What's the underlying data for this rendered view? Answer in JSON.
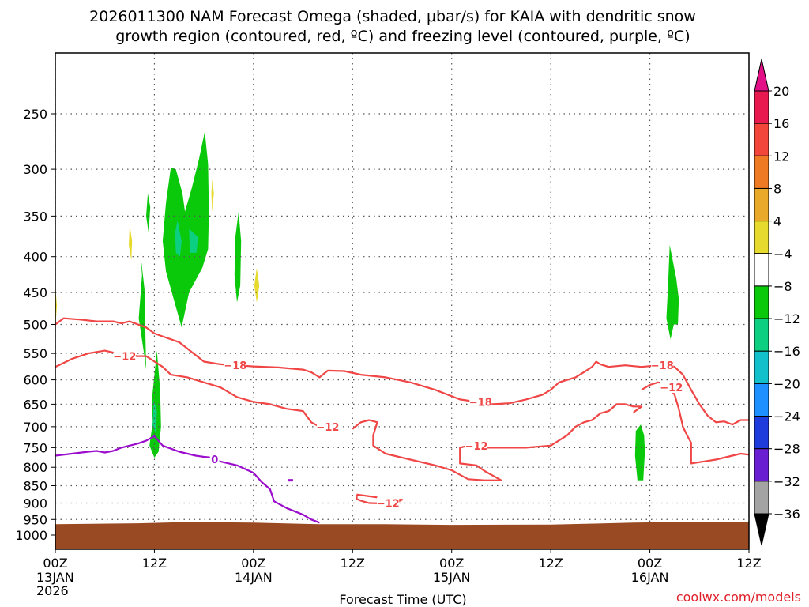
{
  "chart_data": {
    "type": "heatmap",
    "title_line1": "2026011300 NAM Forecast Omega (shaded, μbar/s) for KAIA with dendritic snow",
    "title_line2": "growth region (contoured, red, ºC) and freezing level (contoured, purple, ºC)",
    "xlabel": "Forecast Time (UTC)",
    "credit": "coolwx.com/models",
    "x_ticks": [
      {
        "h": 0,
        "label": "00Z",
        "sub1": "13JAN",
        "sub2": "2026"
      },
      {
        "h": 12,
        "label": "12Z",
        "sub1": "",
        "sub2": ""
      },
      {
        "h": 24,
        "label": "00Z",
        "sub1": "14JAN",
        "sub2": ""
      },
      {
        "h": 36,
        "label": "12Z",
        "sub1": "",
        "sub2": ""
      },
      {
        "h": 48,
        "label": "00Z",
        "sub1": "15JAN",
        "sub2": ""
      },
      {
        "h": 60,
        "label": "12Z",
        "sub1": "",
        "sub2": ""
      },
      {
        "h": 72,
        "label": "00Z",
        "sub1": "16JAN",
        "sub2": ""
      },
      {
        "h": 84,
        "label": "12Z",
        "sub1": "",
        "sub2": ""
      }
    ],
    "xlim": [
      0,
      84
    ],
    "y_ticks": [
      250,
      300,
      350,
      400,
      450,
      500,
      550,
      600,
      650,
      700,
      750,
      800,
      850,
      900,
      950,
      1000
    ],
    "ylim": [
      200,
      1035
    ],
    "y_scale": "log",
    "grid": true,
    "colorbar": {
      "labels": [
        "20",
        "16",
        "12",
        "8",
        "4",
        "−4",
        "−8",
        "−12",
        "−16",
        "−20",
        "−24",
        "−28",
        "−32",
        "−36"
      ],
      "colors": [
        "#e8194f",
        "#f2463a",
        "#ee7b24",
        "#e9a92b",
        "#e6da2e",
        "#ffffff",
        "#0ac80a",
        "#0ccf82",
        "#12c0cc",
        "#1e90ff",
        "#1e3cdc",
        "#6a1ed2",
        "#9a0acb",
        "#a3a3a3"
      ],
      "top_cap": "#e20f87",
      "bottom_cap": "#000000"
    },
    "terrain_color": "#9a4a22",
    "omega_regions": [
      {
        "color": "#0ac80a",
        "pts": [
          [
            10.3,
            395
          ],
          [
            10.5,
            425
          ],
          [
            10.1,
            490
          ],
          [
            10.7,
            545
          ],
          [
            11.0,
            580
          ],
          [
            10.9,
            505
          ],
          [
            10.8,
            445
          ]
        ]
      },
      {
        "color": "#0ac80a",
        "pts": [
          [
            12.3,
            545
          ],
          [
            12.7,
            620
          ],
          [
            12.8,
            700
          ],
          [
            12.5,
            760
          ],
          [
            12.0,
            775
          ],
          [
            11.4,
            745
          ],
          [
            11.8,
            690
          ],
          [
            11.7,
            640
          ]
        ]
      },
      {
        "color": "#0ac80a",
        "pts": [
          [
            14.0,
            298
          ],
          [
            13.4,
            335
          ],
          [
            13.0,
            380
          ],
          [
            13.4,
            420
          ],
          [
            15.3,
            505
          ],
          [
            16.2,
            450
          ],
          [
            17.8,
            415
          ],
          [
            18.5,
            390
          ],
          [
            18.6,
            345
          ],
          [
            18.5,
            295
          ],
          [
            18.1,
            265
          ],
          [
            17.4,
            290
          ],
          [
            16.5,
            320
          ],
          [
            15.7,
            345
          ],
          [
            15.4,
            325
          ],
          [
            14.6,
            300
          ]
        ]
      },
      {
        "color": "#0ccf82",
        "pts": [
          [
            14.8,
            355
          ],
          [
            15.3,
            380
          ],
          [
            15.1,
            400
          ],
          [
            14.6,
            395
          ],
          [
            14.5,
            370
          ]
        ]
      },
      {
        "color": "#0ccf82",
        "pts": [
          [
            16.2,
            365
          ],
          [
            17.3,
            375
          ],
          [
            17.1,
            395
          ],
          [
            16.3,
            395
          ]
        ]
      },
      {
        "color": "#0ccf82",
        "pts": [
          [
            11.9,
            640
          ],
          [
            12.3,
            665
          ],
          [
            12.2,
            715
          ],
          [
            11.8,
            700
          ]
        ]
      },
      {
        "color": "#0ac80a",
        "pts": [
          [
            11.2,
            325
          ],
          [
            11.5,
            340
          ],
          [
            11.3,
            370
          ],
          [
            11.0,
            350
          ]
        ]
      },
      {
        "color": "#0ac80a",
        "pts": [
          [
            22.2,
            345
          ],
          [
            22.5,
            380
          ],
          [
            22.4,
            440
          ],
          [
            22.0,
            465
          ],
          [
            21.7,
            425
          ],
          [
            21.8,
            375
          ]
        ]
      },
      {
        "color": "#e6da2e",
        "pts": [
          [
            19.0,
            310
          ],
          [
            19.2,
            325
          ],
          [
            19.0,
            345
          ],
          [
            18.9,
            325
          ]
        ]
      },
      {
        "color": "#e6da2e",
        "pts": [
          [
            9.0,
            360
          ],
          [
            9.3,
            380
          ],
          [
            9.2,
            405
          ],
          [
            8.9,
            385
          ]
        ]
      },
      {
        "color": "#e6da2e",
        "pts": [
          [
            24.4,
            415
          ],
          [
            24.7,
            440
          ],
          [
            24.4,
            465
          ],
          [
            24.1,
            440
          ]
        ]
      },
      {
        "color": "#e6da2e",
        "pts": [
          [
            0.0,
            440
          ],
          [
            0.2,
            470
          ],
          [
            0.0,
            505
          ]
        ]
      },
      {
        "color": "#0ac80a",
        "pts": [
          [
            70.9,
            695
          ],
          [
            71.3,
            720
          ],
          [
            71.4,
            760
          ],
          [
            71.2,
            835
          ],
          [
            70.5,
            835
          ],
          [
            70.2,
            770
          ],
          [
            70.3,
            710
          ]
        ]
      },
      {
        "color": "#0ac80a",
        "pts": [
          [
            74.4,
            385
          ],
          [
            75.2,
            430
          ],
          [
            75.5,
            460
          ],
          [
            75.4,
            500
          ],
          [
            74.9,
            500
          ],
          [
            74.5,
            525
          ],
          [
            74.0,
            490
          ],
          [
            74.2,
            440
          ]
        ]
      }
    ],
    "contours": [
      {
        "name": "−12",
        "color": "#f04646",
        "pts": [
          [
            0,
            575
          ],
          [
            2,
            560
          ],
          [
            4,
            550
          ],
          [
            6,
            545
          ],
          [
            8,
            552
          ],
          [
            10,
            555
          ],
          [
            11,
            555
          ],
          [
            13,
            575
          ],
          [
            14,
            590
          ],
          [
            16,
            595
          ],
          [
            18,
            605
          ],
          [
            20,
            615
          ],
          [
            22,
            635
          ],
          [
            24,
            645
          ],
          [
            26,
            650
          ],
          [
            28,
            660
          ],
          [
            30,
            665
          ],
          [
            31,
            690
          ],
          [
            32,
            700
          ]
        ]
      },
      {
        "name": "−12",
        "color": "#f04646",
        "pts": [
          [
            36,
            705
          ],
          [
            37,
            690
          ],
          [
            38,
            685
          ],
          [
            39,
            690
          ],
          [
            38.5,
            720
          ],
          [
            38.5,
            745
          ],
          [
            40,
            765
          ],
          [
            43,
            780
          ],
          [
            46,
            795
          ],
          [
            48,
            808
          ],
          [
            49,
            820
          ],
          [
            50,
            832
          ],
          [
            52,
            835
          ],
          [
            54,
            835
          ],
          [
            52,
            810
          ],
          [
            51,
            795
          ],
          [
            49,
            790
          ],
          [
            49,
            750
          ],
          [
            50,
            745
          ],
          [
            52,
            750
          ],
          [
            57,
            750
          ],
          [
            60,
            745
          ],
          [
            62,
            720
          ],
          [
            63,
            700
          ],
          [
            64,
            690
          ],
          [
            65,
            685
          ],
          [
            66,
            670
          ],
          [
            67,
            665
          ],
          [
            68,
            650
          ],
          [
            69,
            650
          ],
          [
            70,
            655
          ],
          [
            71,
            655
          ],
          [
            70,
            668
          ]
        ]
      },
      {
        "name": "−12",
        "color": "#f04646",
        "pts": [
          [
            71,
            620
          ],
          [
            72,
            610
          ],
          [
            73,
            605
          ],
          [
            74,
            608
          ],
          [
            75,
            630
          ],
          [
            75.5,
            660
          ],
          [
            76,
            700
          ],
          [
            76.5,
            720
          ],
          [
            77,
            738
          ],
          [
            77,
            790
          ],
          [
            80,
            780
          ],
          [
            83,
            765
          ],
          [
            85,
            770
          ],
          [
            85.5,
            800
          ],
          [
            86,
            812
          ]
        ]
      },
      {
        "name": "−12",
        "color": "#f04646",
        "pts": [
          [
            36.5,
            875
          ],
          [
            38,
            880
          ],
          [
            41,
            890
          ],
          [
            42,
            890
          ],
          [
            41,
            902
          ],
          [
            38,
            900
          ],
          [
            37,
            893
          ],
          [
            36.5,
            888
          ],
          [
            36.5,
            875
          ]
        ]
      },
      {
        "name": "−18",
        "color": "#f04646",
        "pts": [
          [
            0,
            500
          ],
          [
            1,
            490
          ],
          [
            3,
            492
          ],
          [
            5,
            495
          ],
          [
            7,
            495
          ],
          [
            8,
            498
          ],
          [
            9,
            495
          ],
          [
            11,
            505
          ],
          [
            12,
            515
          ],
          [
            13,
            520
          ],
          [
            15,
            530
          ],
          [
            18,
            565
          ],
          [
            20,
            570
          ],
          [
            22,
            572
          ],
          [
            24,
            574
          ],
          [
            27,
            576
          ],
          [
            30,
            580
          ],
          [
            31,
            585
          ],
          [
            32,
            595
          ],
          [
            33,
            582
          ],
          [
            35,
            583
          ],
          [
            37,
            590
          ],
          [
            40,
            595
          ],
          [
            43,
            605
          ],
          [
            46,
            620
          ],
          [
            49,
            640
          ],
          [
            51,
            645
          ],
          [
            53,
            650
          ],
          [
            55,
            648
          ],
          [
            57,
            640
          ],
          [
            59,
            630
          ],
          [
            60,
            620
          ],
          [
            61,
            605
          ],
          [
            63,
            595
          ],
          [
            64,
            585
          ],
          [
            65,
            575
          ],
          [
            65.5,
            565
          ],
          [
            66,
            570
          ],
          [
            67,
            575
          ],
          [
            69,
            572
          ],
          [
            71,
            575
          ],
          [
            73,
            572
          ],
          [
            74,
            570
          ],
          [
            75,
            575
          ],
          [
            76,
            590
          ],
          [
            77,
            620
          ],
          [
            78,
            650
          ],
          [
            79,
            675
          ],
          [
            80,
            690
          ],
          [
            81,
            688
          ],
          [
            82,
            695
          ],
          [
            83,
            685
          ],
          [
            85,
            685
          ],
          [
            86,
            690
          ]
        ]
      },
      {
        "name": "0",
        "color": "#9b0ccd",
        "pts": [
          [
            0,
            770
          ],
          [
            2,
            765
          ],
          [
            4,
            760
          ],
          [
            5,
            758
          ],
          [
            6,
            762
          ],
          [
            7,
            758
          ],
          [
            8,
            750
          ],
          [
            10,
            740
          ],
          [
            11,
            733
          ],
          [
            12,
            722
          ],
          [
            13,
            745
          ],
          [
            15,
            760
          ],
          [
            17,
            770
          ],
          [
            18,
            773
          ],
          [
            19,
            775
          ],
          [
            20,
            785
          ],
          [
            22,
            795
          ],
          [
            24,
            815
          ],
          [
            25,
            840
          ],
          [
            26,
            860
          ],
          [
            26.5,
            895
          ],
          [
            28,
            915
          ],
          [
            30,
            935
          ],
          [
            31,
            950
          ],
          [
            32,
            960
          ]
        ]
      }
    ],
    "contour_labels": [
      {
        "text": "−12",
        "h": 8.4,
        "p": 555
      },
      {
        "text": "−18",
        "h": 21.8,
        "p": 572
      },
      {
        "text": "−12",
        "h": 33.0,
        "p": 700
      },
      {
        "text": "−18",
        "h": 51.5,
        "p": 645
      },
      {
        "text": "−12",
        "h": 51.0,
        "p": 745
      },
      {
        "text": "−12",
        "h": 40.3,
        "p": 900
      },
      {
        "text": "−18",
        "h": 73.5,
        "p": 572
      },
      {
        "text": "−12",
        "h": 74.6,
        "p": 615
      },
      {
        "text": "0",
        "h": 19.3,
        "p": 779
      }
    ],
    "small_marks": [
      {
        "color": "#9b0ccd",
        "h": 28.5,
        "p": 835
      },
      {
        "color": "#9b0ccd",
        "h": 79.0,
        "p": 965
      }
    ]
  }
}
